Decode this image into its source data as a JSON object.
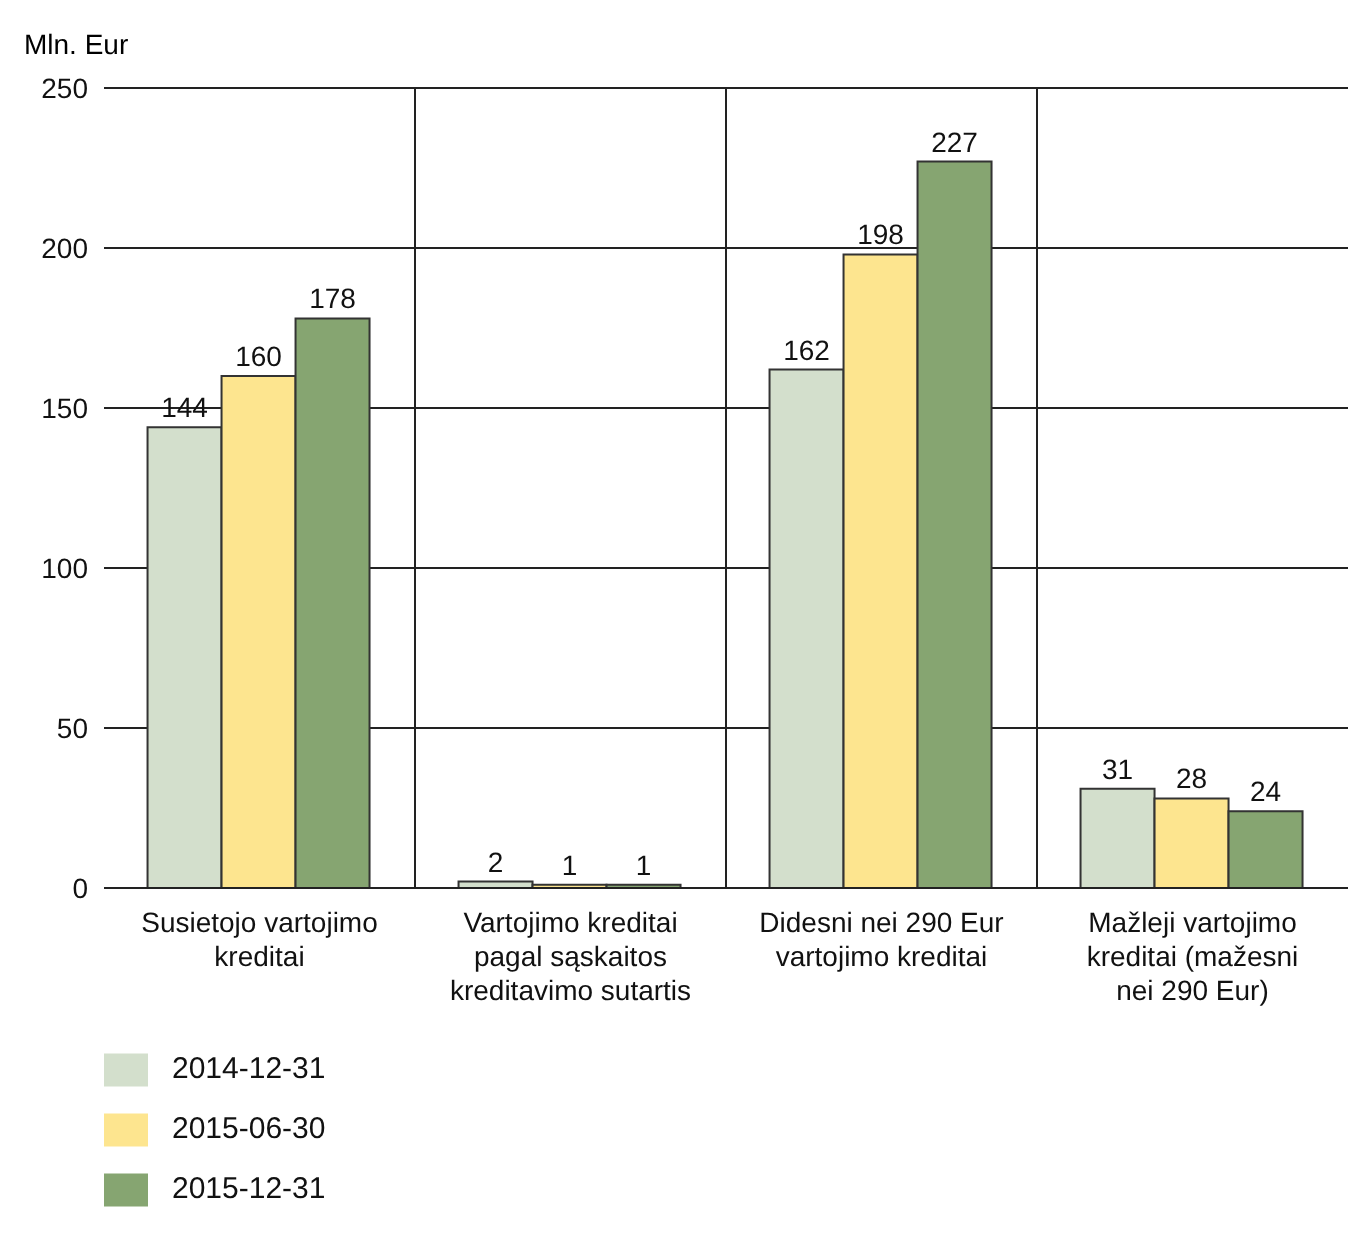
{
  "chart_data": {
    "type": "bar",
    "ylabel": "Mln. Eur",
    "categories": [
      "Susietojo vartojimo kreditai",
      "Vartojimo kreditai pagal sąskaitos kreditavimo sutartis",
      "Didesni nei 290 Eur vartojimo kreditai",
      "Mažleji vartojimo kreditai (mažesni nei 290 Eur)"
    ],
    "series": [
      {
        "name": "2014-12-31",
        "color": "#d3dfcc",
        "values": [
          144,
          2,
          162,
          31
        ]
      },
      {
        "name": "2015-06-30",
        "color": "#fde58f",
        "values": [
          160,
          1,
          198,
          28
        ]
      },
      {
        "name": "2015-12-31",
        "color": "#86a571",
        "values": [
          178,
          1,
          227,
          24
        ]
      }
    ],
    "ylim": [
      0,
      250
    ],
    "yticks": [
      0,
      50,
      100,
      150,
      200,
      250
    ],
    "grid": true,
    "legend": "bottom left",
    "data_labels": true
  }
}
